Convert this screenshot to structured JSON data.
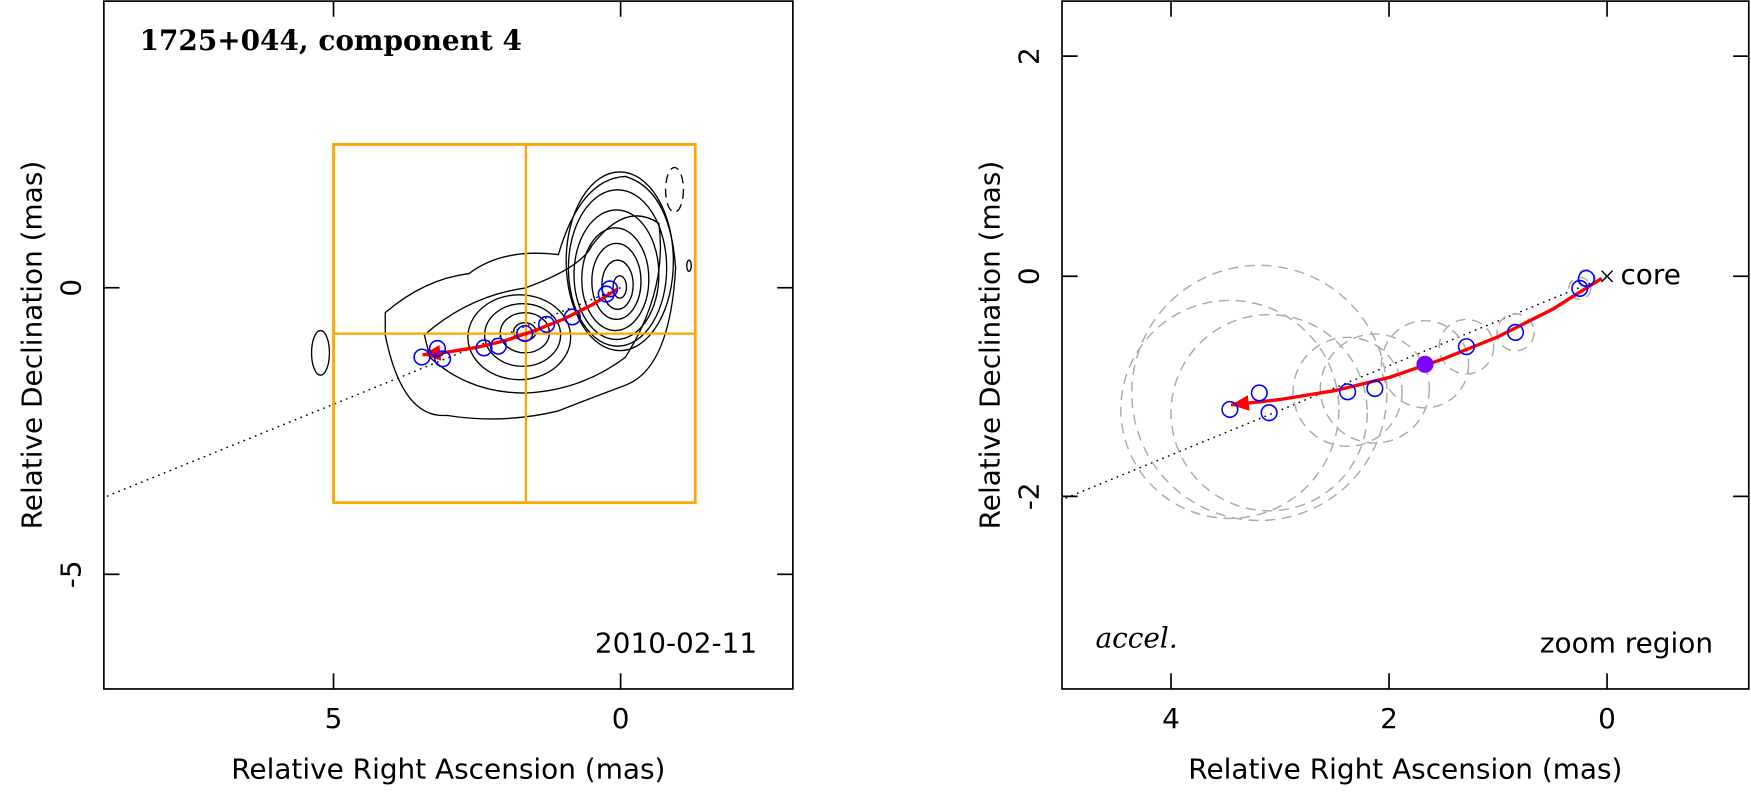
{
  "chart_data": [
    {
      "type": "scatter",
      "title": "1725+044, component 4",
      "annotation": "2010-02-11",
      "x_label": "Relative Right Ascension (mas)",
      "y_label": "Relative Declination (mas)",
      "xlim": [
        9,
        -3
      ],
      "ylim": [
        -7,
        5
      ],
      "xticks": [
        5,
        0
      ],
      "yticks": [
        0,
        -5
      ],
      "components": {
        "color": "#0000ff",
        "x": [
          0.19,
          0.25,
          0.84,
          1.29,
          1.67,
          2.13,
          2.38,
          3.1,
          3.19,
          3.46
        ],
        "y": [
          -0.02,
          -0.11,
          -0.51,
          -0.64,
          -0.8,
          -1.02,
          -1.05,
          -1.24,
          -1.06,
          -1.21
        ]
      },
      "trajectory": {
        "color": "#ff0000",
        "x": [
          0.05,
          0.5,
          1.0,
          1.5,
          2.0,
          2.5,
          3.0,
          3.45
        ],
        "y": [
          -0.02,
          -0.3,
          -0.55,
          -0.75,
          -0.92,
          -1.04,
          -1.12,
          -1.17
        ]
      },
      "direction": {
        "x": [
          0,
          9
        ],
        "y": [
          0,
          -3.66
        ]
      },
      "zoom_box": {
        "color": "#ffa500",
        "x": [
          5,
          -1.3
        ],
        "y": [
          -3.75,
          2.5
        ],
        "center": [
          1.65,
          -0.8
        ]
      }
    },
    {
      "type": "scatter",
      "annotation": "zoom region",
      "label": "accel.",
      "core_label": "core",
      "x_label": "Relative Right Ascension (mas)",
      "y_label": "Relative Declination (mas)",
      "xlim": [
        5,
        -1.3
      ],
      "ylim": [
        -3.75,
        2.5
      ],
      "xticks": [
        4,
        2,
        0
      ],
      "yticks": [
        2,
        0,
        -2
      ],
      "components": {
        "color": "#0000ff",
        "filled_color": "#8000ff",
        "x": [
          0.19,
          0.25,
          0.84,
          1.29,
          1.67,
          2.13,
          2.38,
          3.1,
          3.19,
          3.46
        ],
        "y": [
          -0.02,
          -0.11,
          -0.51,
          -0.64,
          -0.8,
          -1.02,
          -1.05,
          -1.24,
          -1.06,
          -1.21
        ],
        "sizes": [
          0.08,
          0.1,
          0.17,
          0.25,
          0.4,
          0.5,
          0.5,
          0.9,
          1.17,
          1.0
        ],
        "filled": [
          false,
          false,
          false,
          false,
          true,
          false,
          false,
          false,
          false,
          false
        ]
      },
      "trajectory": {
        "color": "#ff0000",
        "x": [
          0.05,
          0.5,
          1.0,
          1.5,
          2.0,
          2.5,
          3.0,
          3.45
        ],
        "y": [
          -0.02,
          -0.3,
          -0.55,
          -0.75,
          -0.92,
          -1.04,
          -1.12,
          -1.17
        ]
      },
      "direction": {
        "x": [
          0,
          5
        ],
        "y": [
          0,
          -2.03
        ]
      }
    }
  ]
}
